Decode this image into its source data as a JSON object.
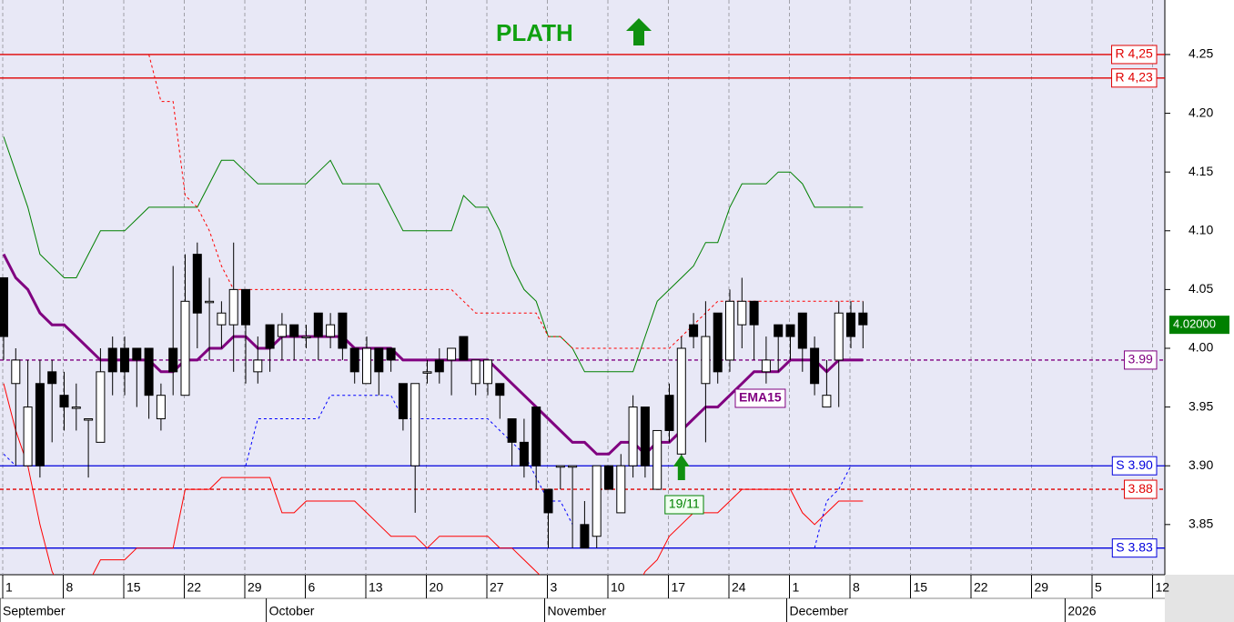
{
  "chart_data": {
    "type": "candlestick",
    "title": "PLATH",
    "categories": [
      "1",
      null,
      null,
      null,
      null,
      "8",
      null,
      null,
      null,
      null,
      "15",
      null,
      null,
      null,
      null,
      "22",
      null,
      null,
      null,
      null,
      "29",
      null,
      null,
      null,
      null,
      "6",
      null,
      null,
      null,
      null,
      "13",
      null,
      null,
      null,
      null,
      "20",
      null,
      null,
      null,
      null,
      "27",
      null,
      null,
      null,
      null,
      "3",
      null,
      null,
      null,
      null,
      "10",
      null,
      null,
      null,
      null,
      "17",
      null,
      null,
      null,
      null,
      "24",
      null,
      null,
      null,
      null,
      "1",
      null,
      null,
      null,
      null,
      "8",
      null,
      null,
      null,
      null,
      "15",
      null,
      null,
      null,
      null,
      "22",
      null,
      null,
      null,
      null,
      "29",
      null,
      null,
      null,
      null,
      "5",
      null,
      null,
      null,
      null,
      "12"
    ],
    "month_labels": [
      {
        "label": "September",
        "category": 0
      },
      {
        "label": "October",
        "category": 22
      },
      {
        "label": "November",
        "category": 45
      },
      {
        "label": "December",
        "category": 65
      },
      {
        "label": "2026",
        "category": 88
      }
    ],
    "ohlc": {
      "up_color": "#ffffff",
      "down_color": "#000000",
      "open": [
        4.06,
        3.97,
        3.9,
        3.97,
        3.98,
        3.96,
        3.95,
        3.94,
        3.92,
        4.0,
        4.0,
        4.0,
        4.0,
        3.94,
        4.0,
        3.96,
        4.08,
        4.04,
        4.02,
        4.02,
        4.05,
        3.98,
        4.02,
        4.01,
        4.02,
        4.01,
        4.03,
        4.01,
        4.03,
        4.0,
        3.97,
        4.0,
        4.0,
        3.97,
        3.9,
        3.98,
        3.99,
        3.99,
        4.01,
        3.97,
        3.97,
        3.97,
        3.94,
        3.92,
        3.95,
        3.88,
        3.9,
        3.9,
        3.85,
        3.84,
        3.9,
        3.86,
        3.9,
        3.95,
        3.88,
        3.96,
        3.91,
        4.02,
        3.97,
        4.03,
        3.99,
        4.02,
        4.04,
        3.98,
        4.02,
        4.02,
        4.03,
        4.0,
        3.95,
        3.99,
        4.03,
        4.03,
        null,
        null,
        null,
        null,
        null,
        null,
        null,
        null,
        null,
        null,
        null,
        null,
        null,
        null,
        null,
        null,
        null,
        null,
        null,
        null,
        null,
        null,
        null,
        null
      ],
      "high": [
        4.06,
        4.0,
        3.99,
        3.99,
        3.99,
        3.98,
        3.97,
        3.94,
        4.0,
        4.01,
        4.01,
        4.0,
        4.0,
        3.97,
        4.07,
        4.08,
        4.09,
        4.06,
        4.04,
        4.09,
        4.05,
        4.01,
        4.02,
        4.03,
        4.02,
        4.02,
        4.03,
        4.03,
        4.03,
        4.0,
        4.01,
        4.0,
        4.0,
        3.97,
        3.97,
        3.99,
        4.0,
        4.0,
        4.01,
        3.99,
        3.99,
        3.97,
        3.94,
        3.94,
        3.95,
        3.88,
        3.9,
        3.9,
        3.87,
        3.9,
        3.9,
        3.91,
        3.96,
        3.95,
        3.93,
        3.97,
        4.01,
        4.03,
        4.04,
        4.03,
        4.05,
        4.06,
        4.04,
        4.01,
        4.02,
        4.02,
        4.03,
        4.01,
        3.99,
        4.04,
        4.04,
        4.04,
        null,
        null,
        null,
        null,
        null,
        null,
        null,
        null,
        null,
        null,
        null,
        null,
        null,
        null,
        null,
        null,
        null,
        null,
        null,
        null,
        null,
        null,
        null,
        null
      ],
      "low": [
        3.99,
        3.9,
        3.9,
        3.89,
        3.92,
        3.93,
        3.93,
        3.89,
        3.92,
        3.96,
        3.96,
        3.95,
        3.94,
        3.93,
        3.96,
        3.96,
        4.0,
        3.99,
        4.0,
        3.98,
        3.97,
        3.97,
        3.98,
        3.99,
        3.99,
        4.0,
        3.99,
        4.0,
        3.99,
        3.97,
        3.97,
        3.96,
        3.98,
        3.93,
        3.86,
        3.97,
        3.97,
        3.96,
        3.99,
        3.96,
        3.96,
        3.94,
        3.9,
        3.89,
        3.88,
        3.83,
        3.88,
        3.83,
        3.83,
        3.83,
        3.88,
        3.86,
        3.89,
        3.89,
        3.88,
        3.92,
        3.9,
        4.0,
        3.92,
        3.97,
        3.98,
        4.0,
        3.99,
        3.97,
        3.98,
        3.99,
        3.98,
        3.96,
        3.95,
        3.95,
        4.0,
        4.0,
        null,
        null,
        null,
        null,
        null,
        null,
        null,
        null,
        null,
        null,
        null,
        null,
        null,
        null,
        null,
        null,
        null,
        null,
        null,
        null,
        null,
        null,
        null,
        null
      ],
      "close": [
        4.01,
        3.99,
        3.95,
        3.9,
        3.97,
        3.95,
        3.95,
        3.94,
        3.98,
        3.98,
        3.98,
        3.99,
        3.96,
        3.96,
        3.98,
        4.04,
        4.03,
        4.04,
        4.03,
        4.05,
        4.02,
        3.99,
        4.0,
        4.02,
        4.01,
        4.01,
        4.01,
        4.02,
        4.0,
        3.98,
        4.0,
        3.98,
        3.99,
        3.94,
        3.97,
        3.98,
        3.98,
        4.0,
        3.99,
        3.99,
        3.99,
        3.96,
        3.92,
        3.9,
        3.9,
        3.86,
        3.9,
        3.9,
        3.83,
        3.9,
        3.88,
        3.9,
        3.95,
        3.9,
        3.93,
        3.93,
        4.0,
        4.01,
        4.01,
        3.98,
        4.04,
        4.04,
        4.02,
        3.99,
        4.01,
        4.01,
        4.0,
        3.97,
        3.96,
        4.03,
        4.01,
        4.02,
        null,
        null,
        null,
        null,
        null,
        null,
        null,
        null,
        null,
        null,
        null,
        null,
        null,
        null,
        null,
        null,
        null,
        null,
        null,
        null,
        null,
        null,
        null,
        null
      ]
    },
    "overlays": [
      {
        "name": "EMA15",
        "color": "#800080",
        "width": 3,
        "dashed": false,
        "values": [
          4.08,
          4.06,
          4.05,
          4.03,
          4.02,
          4.02,
          4.01,
          4.0,
          3.99,
          3.99,
          3.99,
          3.99,
          3.99,
          3.98,
          3.98,
          3.99,
          3.99,
          4.0,
          4.0,
          4.01,
          4.01,
          4.0,
          4.0,
          4.01,
          4.01,
          4.01,
          4.01,
          4.01,
          4.01,
          4.0,
          4.0,
          4.0,
          4.0,
          3.99,
          3.99,
          3.99,
          3.99,
          3.99,
          3.99,
          3.99,
          3.99,
          3.98,
          3.97,
          3.96,
          3.95,
          3.94,
          3.93,
          3.92,
          3.92,
          3.91,
          3.91,
          3.92,
          3.92,
          3.91,
          3.92,
          3.92,
          3.93,
          3.94,
          3.95,
          3.95,
          3.96,
          3.97,
          3.98,
          3.98,
          3.98,
          3.99,
          3.99,
          3.99,
          3.98,
          3.99,
          3.99,
          3.99,
          null,
          null,
          null,
          null,
          null,
          null,
          null,
          null,
          null,
          null,
          null,
          null,
          null,
          null,
          null,
          null,
          null,
          null,
          null,
          null,
          null,
          null,
          null,
          null
        ]
      },
      {
        "color": "#008000",
        "width": 1,
        "dashed": false,
        "values": [
          4.18,
          4.15,
          4.12,
          4.08,
          4.07,
          4.06,
          4.06,
          4.08,
          4.1,
          4.1,
          4.1,
          4.11,
          4.12,
          4.12,
          4.12,
          4.12,
          4.12,
          4.14,
          4.16,
          4.16,
          4.15,
          4.14,
          4.14,
          4.14,
          4.14,
          4.14,
          4.15,
          4.16,
          4.14,
          4.14,
          4.14,
          4.14,
          4.12,
          4.1,
          4.1,
          4.1,
          4.1,
          4.1,
          4.13,
          4.12,
          4.12,
          4.1,
          4.07,
          4.05,
          4.04,
          4.01,
          4.01,
          4.0,
          3.98,
          3.98,
          3.98,
          3.98,
          3.98,
          4.01,
          4.04,
          4.05,
          4.06,
          4.07,
          4.09,
          4.09,
          4.12,
          4.14,
          4.14,
          4.14,
          4.15,
          4.15,
          4.14,
          4.12,
          4.12,
          4.12,
          4.12,
          4.12,
          null,
          null,
          null,
          null,
          null,
          null,
          null,
          null,
          null,
          null,
          null,
          null,
          null,
          null,
          null,
          null,
          null,
          null,
          null,
          null,
          null,
          null,
          null,
          null
        ]
      },
      {
        "color": "#ff0000",
        "width": 1,
        "dashed": false,
        "values": [
          3.97,
          3.93,
          3.9,
          3.85,
          3.81,
          3.79,
          3.79,
          3.8,
          3.82,
          3.82,
          3.82,
          3.83,
          3.83,
          3.83,
          3.83,
          3.88,
          3.88,
          3.88,
          3.89,
          3.89,
          3.89,
          3.89,
          3.89,
          3.86,
          3.86,
          3.87,
          3.87,
          3.87,
          3.87,
          3.87,
          3.86,
          3.85,
          3.84,
          3.84,
          3.84,
          3.83,
          3.84,
          3.84,
          3.84,
          3.84,
          3.84,
          3.83,
          3.83,
          3.82,
          3.81,
          3.8,
          3.79,
          3.79,
          3.79,
          3.79,
          3.79,
          3.79,
          3.79,
          3.81,
          3.82,
          3.84,
          3.85,
          3.86,
          3.86,
          3.86,
          3.87,
          3.88,
          3.88,
          3.88,
          3.88,
          3.88,
          3.86,
          3.85,
          3.86,
          3.87,
          3.87,
          3.87,
          null,
          null,
          null,
          null,
          null,
          null,
          null,
          null,
          null,
          null,
          null,
          null,
          null,
          null,
          null,
          null,
          null,
          null,
          null,
          null,
          null,
          null,
          null,
          null
        ]
      },
      {
        "color": "#ff0000",
        "width": 1,
        "dashed": true,
        "values": [
          null,
          null,
          null,
          null,
          null,
          null,
          null,
          null,
          null,
          null,
          null,
          null,
          4.25,
          4.21,
          4.21,
          4.13,
          4.12,
          4.1,
          4.07,
          4.05,
          4.05,
          4.05,
          4.05,
          4.05,
          4.05,
          4.05,
          4.05,
          4.05,
          4.05,
          4.05,
          4.05,
          4.05,
          4.05,
          4.05,
          4.05,
          4.05,
          4.05,
          4.05,
          4.04,
          4.03,
          4.03,
          4.03,
          4.03,
          4.03,
          4.03,
          4.01,
          4.01,
          4.0,
          4.0,
          4.0,
          4.0,
          4.0,
          4.0,
          4.0,
          4.0,
          4.0,
          4.01,
          4.02,
          4.03,
          4.04,
          4.04,
          4.04,
          4.04,
          4.04,
          4.04,
          4.04,
          4.04,
          4.04,
          4.04,
          4.04,
          4.04,
          4.04,
          null,
          null,
          null,
          null,
          null,
          null,
          null,
          null,
          null,
          null,
          null,
          null,
          null,
          null,
          null,
          null,
          null,
          null,
          null,
          null,
          null,
          null,
          null,
          null
        ]
      },
      {
        "color": "#0000ff",
        "width": 1,
        "dashed": true,
        "values": [
          3.91,
          3.9,
          null,
          null,
          null,
          null,
          null,
          null,
          null,
          null,
          null,
          null,
          null,
          null,
          null,
          null,
          null,
          null,
          null,
          null,
          3.9,
          3.94,
          3.94,
          3.94,
          3.94,
          3.94,
          3.94,
          3.96,
          3.96,
          3.96,
          3.96,
          3.96,
          3.96,
          3.94,
          3.94,
          3.94,
          3.94,
          3.94,
          3.94,
          3.94,
          3.94,
          3.93,
          3.92,
          3.91,
          3.89,
          3.87,
          3.87,
          3.85,
          null,
          null,
          null,
          null,
          null,
          null,
          null,
          null,
          null,
          null,
          null,
          null,
          null,
          null,
          null,
          null,
          null,
          null,
          null,
          3.83,
          3.87,
          3.88,
          3.9,
          null,
          null,
          null,
          null,
          null,
          null,
          null,
          null,
          null,
          null,
          null,
          null,
          null,
          null,
          null,
          null,
          null,
          null,
          null,
          null,
          null,
          null,
          null,
          null,
          null
        ]
      }
    ],
    "levels": [
      {
        "value": 4.25,
        "label": "R 4,25",
        "color": "#e00000",
        "dashed": false
      },
      {
        "value": 4.23,
        "label": "R 4,23",
        "color": "#e00000",
        "dashed": false
      },
      {
        "value": 3.99,
        "label": "3.99",
        "color": "#800080",
        "dashed": true
      },
      {
        "value": 3.9,
        "label": "S 3.90",
        "color": "#0000dd",
        "dashed": false
      },
      {
        "value": 3.88,
        "label": "3.88",
        "color": "#e00000",
        "dashed": true
      },
      {
        "value": 3.83,
        "label": "S 3.83",
        "color": "#0000dd",
        "dashed": false
      }
    ],
    "last_price": {
      "value": 4.02,
      "label": "4.02000"
    },
    "signal": {
      "label": "19/11",
      "category": 56
    },
    "ylim": [
      3.8073,
      4.2964
    ],
    "yticks": [
      {
        "value": 3.85,
        "label": "3.85"
      },
      {
        "value": 3.9,
        "label": "3.90"
      },
      {
        "value": 3.95,
        "label": "3.95"
      },
      {
        "value": 4.0,
        "label": "4.00"
      },
      {
        "value": 4.05,
        "label": "4.05"
      },
      {
        "value": 4.1,
        "label": "4.10"
      },
      {
        "value": 4.15,
        "label": "4.15"
      },
      {
        "value": 4.2,
        "label": "4.20"
      },
      {
        "value": 4.25,
        "label": "4.25"
      }
    ],
    "grid": true
  }
}
